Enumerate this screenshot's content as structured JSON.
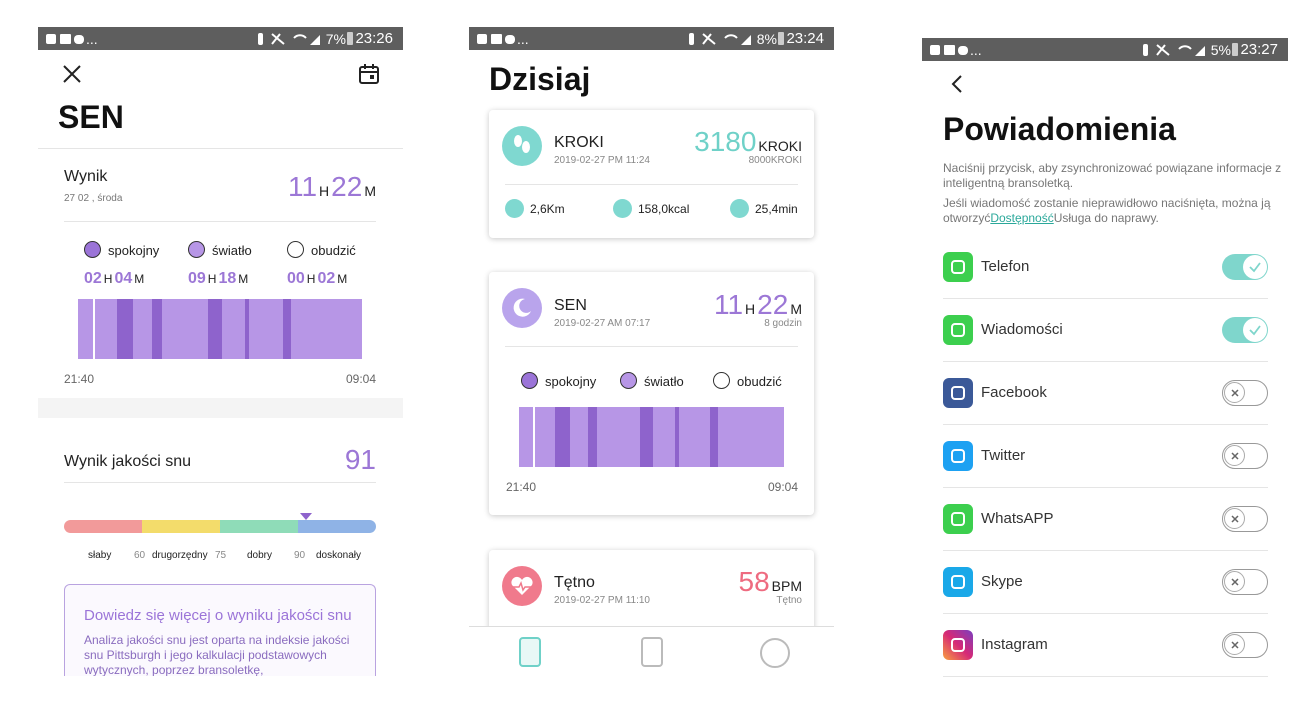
{
  "screens": [
    {
      "status": {
        "more": "...",
        "battery": "7%",
        "time": "23:26"
      },
      "title": "SEN",
      "score": {
        "label": "Wynik",
        "date": "27 02 , środa",
        "hours": "11",
        "hour_unit": "H",
        "minutes": "22",
        "minute_unit": "M"
      },
      "legend": [
        {
          "label": "spokojny",
          "hours": "02",
          "hour_unit": "H",
          "minutes": "04",
          "minute_unit": "M"
        },
        {
          "label": "światło",
          "hours": "09",
          "hour_unit": "H",
          "minutes": "18",
          "minute_unit": "M"
        },
        {
          "label": "obudzić",
          "hours": "00",
          "hour_unit": "H",
          "minutes": "02",
          "minute_unit": "M"
        }
      ],
      "start_time": "21:40",
      "end_time": "09:04",
      "quality": {
        "label": "Wynik jakości snu",
        "value": "91",
        "scale": [
          "słaby",
          "60",
          "drugorzędny",
          "75",
          "dobry",
          "90",
          "doskonały"
        ]
      },
      "info": {
        "title": "Dowiedz się więcej o wyniku jakości snu",
        "text": "Analiza jakości snu jest oparta na indeksie jakości snu Pittsburgh i jego kalkulacji podstawowych wytycznych, poprzez bransoletkę,"
      }
    },
    {
      "status": {
        "more": "...",
        "battery": "8%",
        "time": "23:24"
      },
      "title": "Dzisiaj",
      "steps": {
        "label": "KROKI",
        "date": "2019-02-27 PM 11:24",
        "value": "3180",
        "unit": "KROKI",
        "goal": "8000KROKI",
        "stats": [
          "2,6Km",
          "158,0kcal",
          "25,4min"
        ]
      },
      "sleep": {
        "label": "SEN",
        "date": "2019-02-27 AM 07:17",
        "hours": "11",
        "hour_unit": "H",
        "minutes": "22",
        "minute_unit": "M",
        "note": "8 godzin",
        "legend": [
          "spokojny",
          "światło",
          "obudzić"
        ],
        "start_time": "21:40",
        "end_time": "09:04"
      },
      "heart": {
        "label": "Tętno",
        "date": "2019-02-27 PM 11:10",
        "value": "58",
        "unit": "BPM",
        "note": "Tętno"
      }
    },
    {
      "status": {
        "more": "...",
        "battery": "5%",
        "time": "23:27"
      },
      "title": "Powiadomienia",
      "intro": "Naciśnij przycisk, aby zsynchronizować powiązane informacje z inteligentną bransoletką.",
      "hint_before": "Jeśli wiadomość zostanie nieprawidłowo naciśnięta, można ją otworzyć",
      "hint_link": "Dostępność",
      "hint_after": "Usługa do naprawy.",
      "apps": [
        {
          "name": "Telefon",
          "enabled": true
        },
        {
          "name": "Wiadomości",
          "enabled": true
        },
        {
          "name": "Facebook",
          "enabled": false
        },
        {
          "name": "Twitter",
          "enabled": false
        },
        {
          "name": "WhatsAPP",
          "enabled": false
        },
        {
          "name": "Skype",
          "enabled": false
        },
        {
          "name": "Instagram",
          "enabled": false
        }
      ]
    }
  ]
}
